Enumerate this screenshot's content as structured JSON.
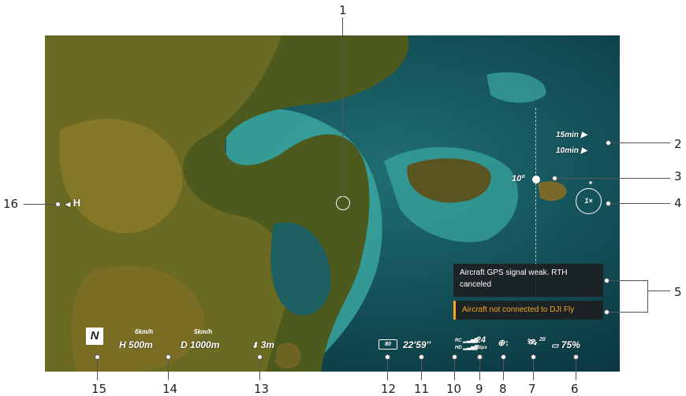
{
  "callouts": {
    "n1": "1",
    "n2": "2",
    "n3": "3",
    "n4": "4",
    "n5": "5",
    "n6": "6",
    "n7": "7",
    "n8": "8",
    "n9": "9",
    "n10": "10",
    "n11": "11",
    "n12": "12",
    "n13": "13",
    "n14": "14",
    "n15": "15",
    "n16": "16"
  },
  "hud": {
    "home_label": "H",
    "flight_time_1": "15min",
    "flight_time_2": "10min",
    "gimbal_angle": "10º",
    "zoom": "1×",
    "message_1": "Aircraft GPS signal weak. RTH canceled",
    "message_2": "Aircraft not connected to DJI Fly",
    "battery_percent": "75%",
    "gps_count": "20",
    "bitrate_value": "24",
    "bitrate_unit": "Mbps",
    "rc_label": "RC",
    "hd_label": "HD",
    "time_remaining": "22'59''",
    "battery_badge": "80",
    "altitude_vs": "3m",
    "h_speed": "6km/h",
    "v_speed": "5km/h",
    "height_label": "H",
    "height_value": "500m",
    "distance_label": "D",
    "distance_value": "1000m",
    "nav_mode": "N"
  },
  "colors": {
    "warning": "#f5a623",
    "panel": "#1e1e1e"
  }
}
